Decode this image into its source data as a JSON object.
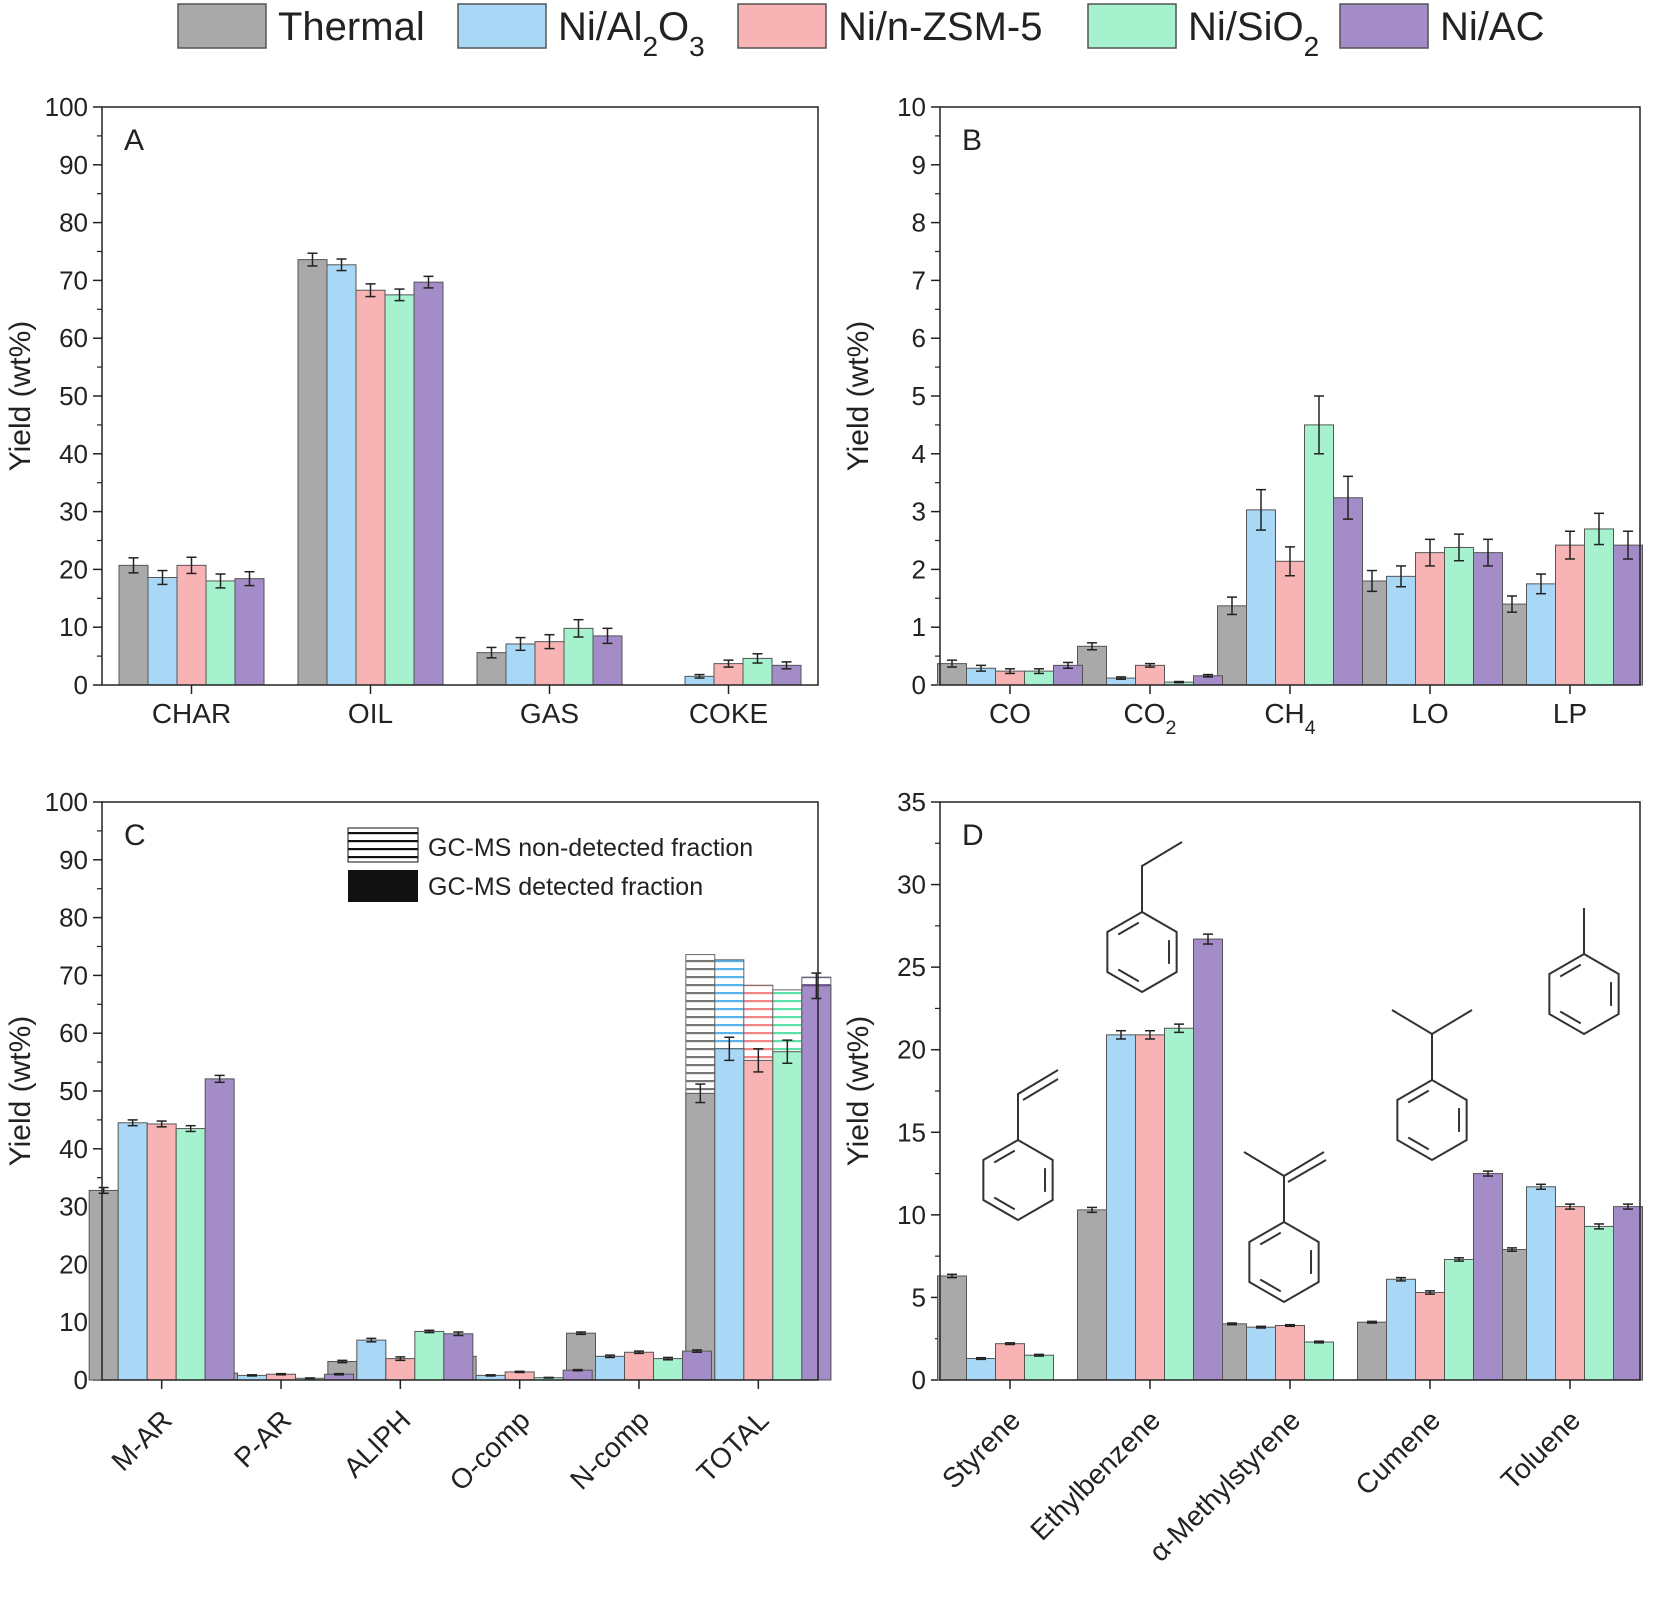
{
  "legend": [
    {
      "label": "Thermal",
      "color": "#a9a9a9"
    },
    {
      "label": "Ni/Al₂O₃",
      "color": "#a9d8f7"
    },
    {
      "label": "Ni/n-ZSM-5",
      "color": "#f8b4b4"
    },
    {
      "label": "Ni/SiO₂",
      "color": "#a6f2cf"
    },
    {
      "label": "Ni/AC",
      "color": "#a48cc8"
    }
  ],
  "chart_data": [
    {
      "panel": "A",
      "type": "bar",
      "ylabel": "Yield (wt%)",
      "ylim": [
        0,
        100
      ],
      "yticks": [
        0,
        10,
        20,
        30,
        40,
        50,
        60,
        70,
        80,
        90,
        100
      ],
      "categories": [
        "CHAR",
        "OIL",
        "GAS",
        "COKE"
      ],
      "series": [
        {
          "name": "Thermal",
          "values": [
            20.7,
            73.6,
            5.6,
            0
          ],
          "errors": [
            1.3,
            1.1,
            0.9,
            0
          ]
        },
        {
          "name": "Ni/Al₂O₃",
          "values": [
            18.6,
            72.7,
            7.1,
            1.5
          ],
          "errors": [
            1.2,
            1.0,
            1.1,
            0.3
          ]
        },
        {
          "name": "Ni/n-ZSM-5",
          "values": [
            20.7,
            68.3,
            7.5,
            3.7
          ],
          "errors": [
            1.4,
            1.1,
            1.2,
            0.6
          ]
        },
        {
          "name": "Ni/SiO₂",
          "values": [
            18.0,
            67.5,
            9.8,
            4.6
          ],
          "errors": [
            1.2,
            1.0,
            1.5,
            0.8
          ]
        },
        {
          "name": "Ni/AC",
          "values": [
            18.4,
            69.7,
            8.5,
            3.4
          ],
          "errors": [
            1.2,
            1.0,
            1.3,
            0.6
          ]
        }
      ]
    },
    {
      "panel": "B",
      "type": "bar",
      "ylabel": "Yield (wt%)",
      "ylim": [
        0,
        10
      ],
      "yticks": [
        0,
        1,
        2,
        3,
        4,
        5,
        6,
        7,
        8,
        9,
        10
      ],
      "categories": [
        "CO",
        "CO₂",
        "CH₄",
        "LO",
        "LP"
      ],
      "series": [
        {
          "name": "Thermal",
          "values": [
            0.37,
            0.67,
            1.37,
            1.8,
            1.4
          ],
          "errors": [
            0.06,
            0.06,
            0.15,
            0.18,
            0.14
          ]
        },
        {
          "name": "Ni/Al₂O₃",
          "values": [
            0.29,
            0.12,
            3.03,
            1.88,
            1.75
          ],
          "errors": [
            0.05,
            0.02,
            0.35,
            0.18,
            0.17
          ]
        },
        {
          "name": "Ni/n-ZSM-5",
          "values": [
            0.24,
            0.34,
            2.14,
            2.29,
            2.42
          ],
          "errors": [
            0.04,
            0.03,
            0.25,
            0.23,
            0.24
          ]
        },
        {
          "name": "Ni/SiO₂",
          "values": [
            0.24,
            0.05,
            4.5,
            2.38,
            2.7
          ],
          "errors": [
            0.04,
            0.01,
            0.5,
            0.23,
            0.27
          ]
        },
        {
          "name": "Ni/AC",
          "values": [
            0.34,
            0.16,
            3.24,
            2.29,
            2.42
          ],
          "errors": [
            0.05,
            0.02,
            0.37,
            0.23,
            0.24
          ]
        }
      ]
    },
    {
      "panel": "C",
      "type": "bar",
      "ylabel": "Yield (wt%)",
      "ylim": [
        0,
        100
      ],
      "yticks": [
        0,
        10,
        20,
        30,
        40,
        50,
        60,
        70,
        80,
        90,
        100
      ],
      "categories": [
        "M-AR",
        "P-AR",
        "ALIPH",
        "O-comp",
        "N-comp",
        "TOTAL"
      ],
      "series": [
        {
          "name": "Thermal",
          "values": [
            32.8,
            1.2,
            3.2,
            4.1,
            8.1,
            49.6
          ],
          "errors": [
            0.5,
            0.1,
            0.2,
            0.3,
            0.2,
            1.6
          ]
        },
        {
          "name": "Ni/Al₂O₃",
          "values": [
            44.5,
            0.8,
            6.9,
            0.8,
            4.1,
            57.3
          ],
          "errors": [
            0.5,
            0.1,
            0.3,
            0.1,
            0.2,
            2.0
          ]
        },
        {
          "name": "Ni/n-ZSM-5",
          "values": [
            44.3,
            1.0,
            3.7,
            1.4,
            4.8,
            55.3
          ],
          "errors": [
            0.5,
            0.1,
            0.3,
            0.1,
            0.2,
            2.0
          ]
        },
        {
          "name": "Ni/SiO₂",
          "values": [
            43.5,
            0.3,
            8.4,
            0.4,
            3.7,
            56.8
          ],
          "errors": [
            0.5,
            0.05,
            0.2,
            0.05,
            0.2,
            2.0
          ]
        },
        {
          "name": "Ni/AC",
          "values": [
            52.1,
            1.0,
            8.0,
            1.7,
            5.0,
            68.2
          ],
          "errors": [
            0.6,
            0.1,
            0.3,
            0.1,
            0.2,
            2.2
          ]
        }
      ],
      "total_oil": [
        73.6,
        72.7,
        68.3,
        67.5,
        69.7
      ],
      "fraction_legend": [
        "GC-MS non-detected fraction",
        "GC-MS detected fraction"
      ]
    },
    {
      "panel": "D",
      "type": "bar",
      "ylabel": "Yield (wt%)",
      "ylim": [
        0,
        35
      ],
      "yticks": [
        0,
        5,
        10,
        15,
        20,
        25,
        30,
        35
      ],
      "categories": [
        "Styrene",
        "Ethylbenzene",
        "α-Methylstyrene",
        "Cumene",
        "Toluene"
      ],
      "series": [
        {
          "name": "Thermal",
          "values": [
            6.3,
            10.3,
            3.4,
            3.5,
            7.9
          ],
          "errors": [
            0.1,
            0.15,
            0.05,
            0.05,
            0.1
          ]
        },
        {
          "name": "Ni/Al₂O₃",
          "values": [
            1.3,
            20.9,
            3.2,
            6.1,
            11.7
          ],
          "errors": [
            0.05,
            0.25,
            0.05,
            0.1,
            0.15
          ]
        },
        {
          "name": "Ni/n-ZSM-5",
          "values": [
            2.2,
            20.9,
            3.3,
            5.3,
            10.5
          ],
          "errors": [
            0.05,
            0.25,
            0.05,
            0.1,
            0.15
          ]
        },
        {
          "name": "Ni/SiO₂",
          "values": [
            1.5,
            21.3,
            2.3,
            7.3,
            9.3
          ],
          "errors": [
            0.05,
            0.25,
            0.05,
            0.1,
            0.15
          ]
        },
        {
          "name": "Ni/AC",
          "values": [
            0,
            26.7,
            0,
            12.5,
            10.5
          ],
          "errors": [
            0,
            0.3,
            0,
            0.15,
            0.15
          ]
        }
      ]
    }
  ]
}
